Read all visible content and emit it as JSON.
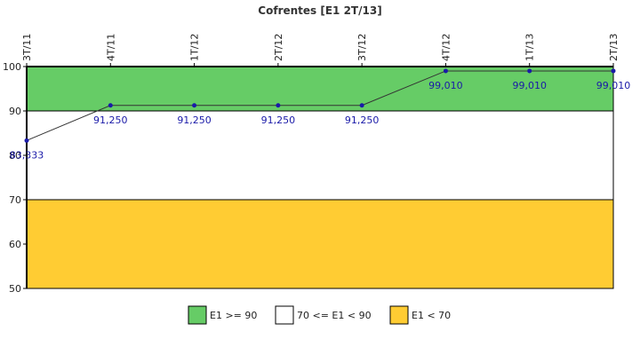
{
  "chart_data": {
    "type": "line",
    "title": "Cofrentes [E1 2T/13]",
    "categories": [
      "3T/11",
      "4T/11",
      "1T/12",
      "2T/12",
      "3T/12",
      "4T/12",
      "1T/13",
      "2T/13"
    ],
    "series": [
      {
        "values": [
          83.333,
          91.25,
          91.25,
          91.25,
          91.25,
          99.01,
          99.01,
          99.01
        ],
        "labels": [
          "83,333",
          "91,250",
          "91,250",
          "91,250",
          "91,250",
          "99,010",
          "99,010",
          "99,010"
        ],
        "color": "#1a1aa8"
      }
    ],
    "ylim": [
      50,
      100
    ],
    "yticks": [
      50,
      60,
      70,
      80,
      90,
      100
    ],
    "bands": [
      {
        "from": 90,
        "to": 100,
        "color": "#66cc66",
        "legend": "E1 >= 90"
      },
      {
        "from": 70,
        "to": 90,
        "color": "#ffffff",
        "legend": "70 <= E1 < 90"
      },
      {
        "from": 50,
        "to": 70,
        "color": "#ffcc33",
        "legend": "E1 < 70"
      }
    ],
    "xlabel": "",
    "ylabel": "",
    "grid": false,
    "legend_position": "bottom"
  }
}
